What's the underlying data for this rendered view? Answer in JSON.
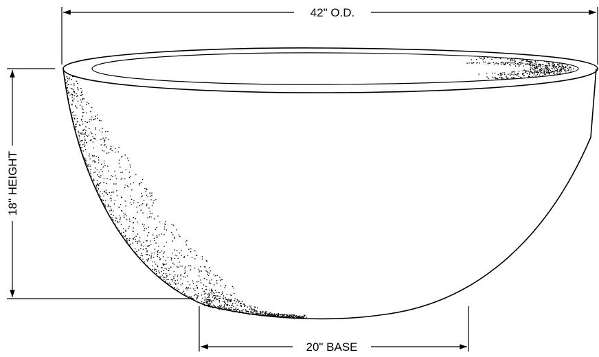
{
  "dimensions": {
    "outer_diameter": "42\" O.D.",
    "height": "18\" HEIGHT",
    "base": "20\" BASE"
  },
  "colors": {
    "ink": "#000000",
    "paper": "#ffffff"
  }
}
